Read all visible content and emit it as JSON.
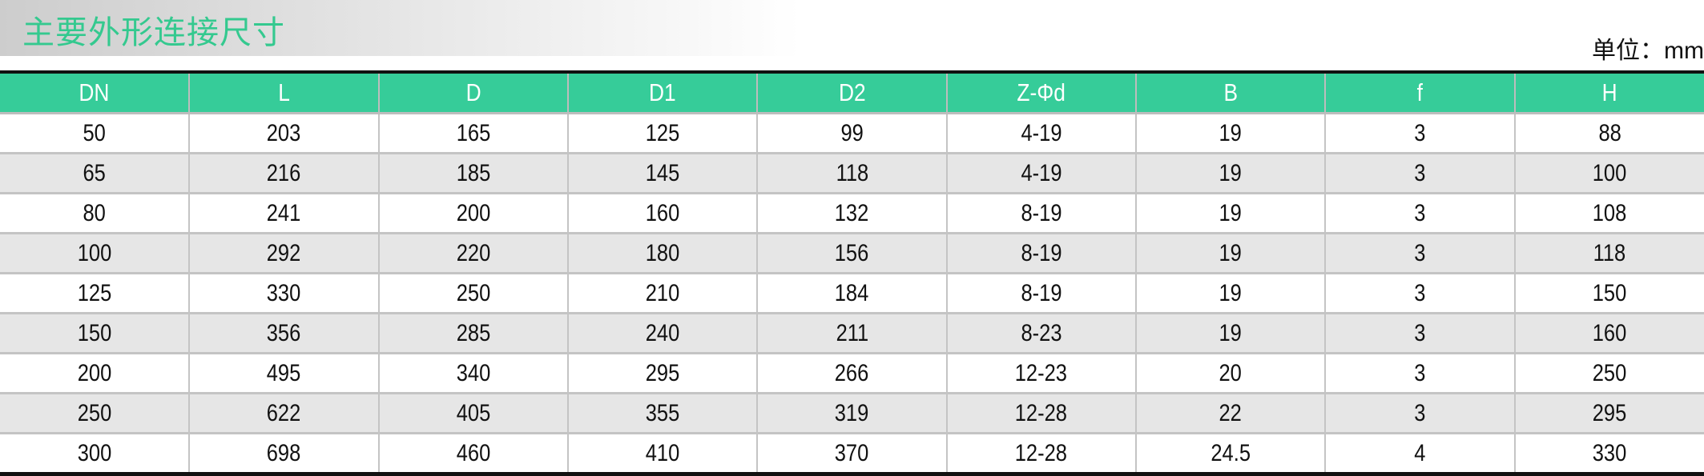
{
  "title": "主要外形连接尺寸",
  "unit_label": "单位：mm",
  "colors": {
    "header_bg": "#36cc99",
    "title_text": "#34c98f",
    "alt_row": "#e6e6e6"
  },
  "table": {
    "columns": [
      "DN",
      "L",
      "D",
      "D1",
      "D2",
      "Z-Φd",
      "B",
      "f",
      "H"
    ],
    "rows": [
      [
        "50",
        "203",
        "165",
        "125",
        "99",
        "4-19",
        "19",
        "3",
        "88"
      ],
      [
        "65",
        "216",
        "185",
        "145",
        "118",
        "4-19",
        "19",
        "3",
        "100"
      ],
      [
        "80",
        "241",
        "200",
        "160",
        "132",
        "8-19",
        "19",
        "3",
        "108"
      ],
      [
        "100",
        "292",
        "220",
        "180",
        "156",
        "8-19",
        "19",
        "3",
        "118"
      ],
      [
        "125",
        "330",
        "250",
        "210",
        "184",
        "8-19",
        "19",
        "3",
        "150"
      ],
      [
        "150",
        "356",
        "285",
        "240",
        "211",
        "8-23",
        "19",
        "3",
        "160"
      ],
      [
        "200",
        "495",
        "340",
        "295",
        "266",
        "12-23",
        "20",
        "3",
        "250"
      ],
      [
        "250",
        "622",
        "405",
        "355",
        "319",
        "12-28",
        "22",
        "3",
        "295"
      ],
      [
        "300",
        "698",
        "460",
        "410",
        "370",
        "12-28",
        "24.5",
        "4",
        "330"
      ]
    ]
  }
}
